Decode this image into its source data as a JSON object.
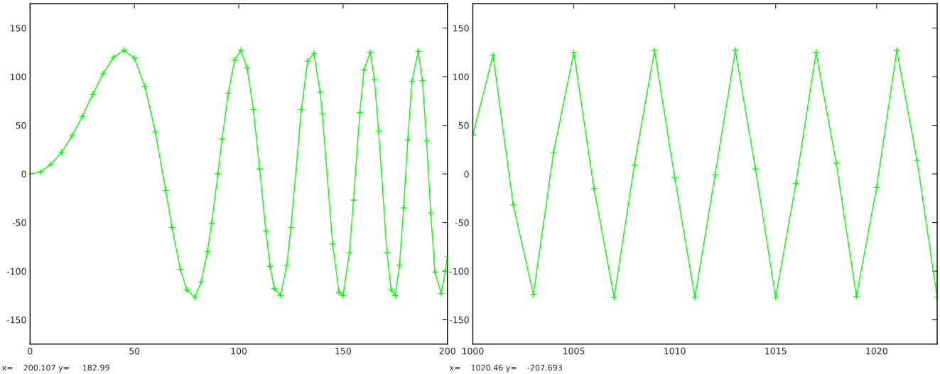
{
  "chart_data": [
    {
      "type": "line",
      "x": [
        0,
        5,
        10,
        15,
        20,
        25,
        30,
        35,
        40,
        45,
        50,
        55,
        60,
        65,
        68,
        72,
        75,
        79,
        82,
        85,
        87,
        90,
        92,
        95,
        98,
        101,
        104,
        107,
        110,
        113,
        115,
        117,
        120,
        123,
        125,
        130,
        133,
        136,
        139,
        140,
        145,
        148,
        150,
        153,
        155,
        158,
        160,
        163,
        165,
        167,
        171,
        173,
        175,
        177,
        179,
        181,
        183,
        186,
        188,
        190,
        192,
        194,
        197,
        199,
        200
      ],
      "series": [
        {
          "color": "#00ff00",
          "values": [
            0,
            2,
            10,
            22,
            39,
            59,
            82,
            103,
            120,
            127,
            119,
            90,
            43,
            -17,
            -55,
            -98,
            -119,
            -127,
            -111,
            -80,
            -51,
            0,
            36,
            83,
            117,
            127,
            109,
            66,
            5,
            -59,
            -95,
            -118,
            -125,
            -94,
            -55,
            66,
            116,
            124,
            84,
            62,
            -72,
            -122,
            -125,
            -81,
            -27,
            63,
            107,
            125,
            97,
            44,
            -81,
            -119,
            -125,
            -94,
            -35,
            35,
            95,
            126,
            96,
            34,
            -40,
            -101,
            -123,
            -100,
            -85
          ]
        }
      ],
      "xlim": [
        0,
        200
      ],
      "ylim": [
        -175,
        175
      ],
      "xticks": [
        0,
        50,
        100,
        150,
        200
      ],
      "yticks": [
        -150,
        -100,
        -50,
        0,
        50,
        100,
        150
      ],
      "marker": "cross",
      "grid": false,
      "annotations": [
        "x=    200.107 y=     182.99"
      ]
    },
    {
      "type": "line",
      "x": [
        1000,
        1001,
        1002,
        1003,
        1004,
        1005,
        1006,
        1007,
        1008,
        1009,
        1010,
        1011,
        1012,
        1013,
        1014,
        1015,
        1016,
        1017,
        1018,
        1019,
        1020,
        1021,
        1022,
        1023
      ],
      "series": [
        {
          "color": "#00ff00",
          "values": [
            40,
            122,
            -32,
            -124,
            22,
            125,
            -15,
            -127,
            9,
            127,
            -4,
            -127,
            -1,
            127,
            5,
            -127,
            -10,
            125,
            11,
            -126,
            -14,
            127,
            14,
            -127
          ]
        }
      ],
      "xlim": [
        1000,
        1023
      ],
      "ylim": [
        -175,
        175
      ],
      "xticks": [
        1000,
        1005,
        1010,
        1015,
        1020
      ],
      "yticks": [
        -150,
        -100,
        -50,
        0,
        50,
        100,
        150
      ],
      "marker": "cross",
      "grid": false,
      "annotations": [
        "x=    1020.46 y=    -207.693"
      ]
    }
  ]
}
